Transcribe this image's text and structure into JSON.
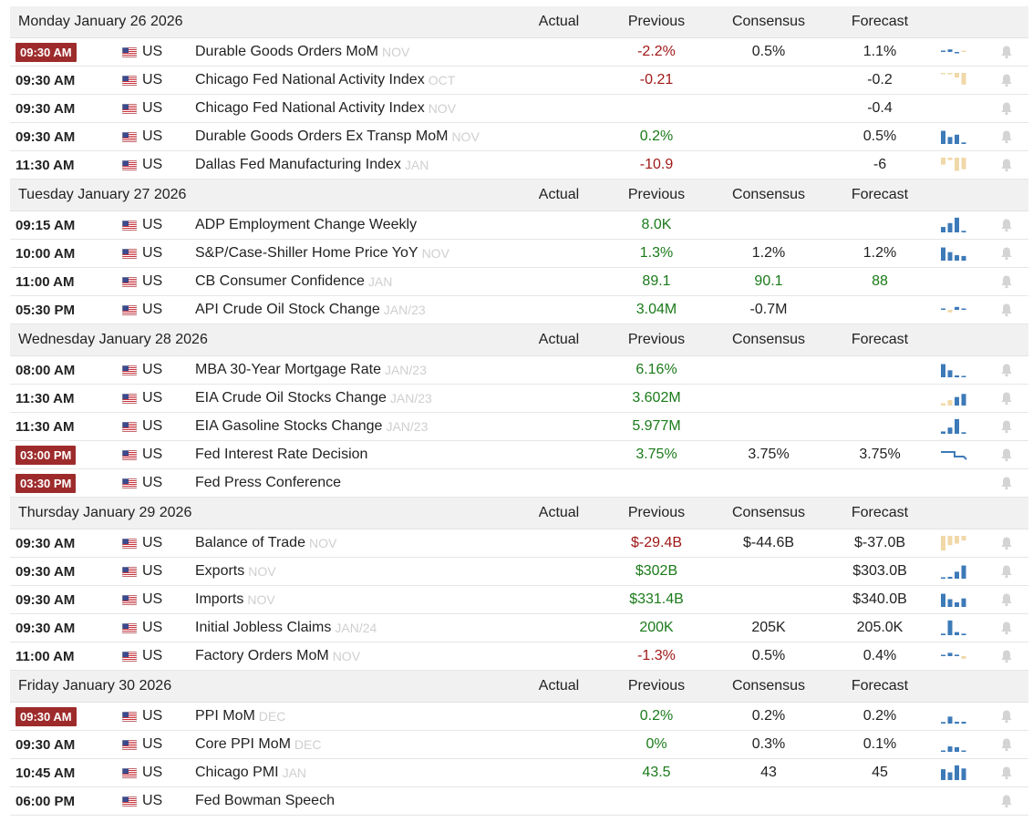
{
  "columns": {
    "actual": "Actual",
    "previous": "Previous",
    "consensus": "Consensus",
    "forecast": "Forecast"
  },
  "colors": {
    "badge": "#9e2b2b",
    "positive": "#1a7a1a",
    "negative": "#a01818",
    "spark_blue": "#3d7ab8",
    "spark_tan": "#f0d8a8"
  },
  "days": [
    {
      "date": "Monday January 26 2026",
      "rows": [
        {
          "time": "09:30 AM",
          "highlight": true,
          "country": "US",
          "event": "Durable Goods Orders MoM",
          "period": "NOV",
          "actual": "",
          "previous": "-2.2%",
          "prev_color": "neg",
          "consensus": "0.5%",
          "forecast": "1.1%",
          "spark": [
            {
              "v": 0.15,
              "c": "blue"
            },
            {
              "v": 0.35,
              "c": "blue"
            },
            {
              "v": -0.1,
              "c": "blue"
            },
            {
              "v": 0.12,
              "c": "tan"
            }
          ]
        },
        {
          "time": "09:30 AM",
          "highlight": false,
          "country": "US",
          "event": "Chicago Fed National Activity Index",
          "period": "OCT",
          "actual": "",
          "previous": "-0.21",
          "prev_color": "neg",
          "consensus": "",
          "forecast": "-0.2",
          "spark": [
            {
              "v": -0.05,
              "c": "tan"
            },
            {
              "v": -0.05,
              "c": "tan"
            },
            {
              "v": -0.3,
              "c": "tan"
            },
            {
              "v": -0.75,
              "c": "tan"
            }
          ]
        },
        {
          "time": "09:30 AM",
          "highlight": false,
          "country": "US",
          "event": "Chicago Fed National Activity Index",
          "period": "NOV",
          "actual": "",
          "previous": "",
          "prev_color": "neu",
          "consensus": "",
          "forecast": "-0.4",
          "spark": []
        },
        {
          "time": "09:30 AM",
          "highlight": false,
          "country": "US",
          "event": "Durable Goods Orders Ex Transp MoM",
          "period": "NOV",
          "actual": "",
          "previous": "0.2%",
          "prev_color": "pos",
          "consensus": "",
          "forecast": "0.5%",
          "spark": [
            {
              "v": 0.85,
              "c": "blue"
            },
            {
              "v": 0.45,
              "c": "blue"
            },
            {
              "v": 0.6,
              "c": "blue"
            },
            {
              "v": 0.1,
              "c": "blue"
            }
          ]
        },
        {
          "time": "11:30 AM",
          "highlight": false,
          "country": "US",
          "event": "Dallas Fed Manufacturing Index",
          "period": "JAN",
          "actual": "",
          "previous": "-10.9",
          "prev_color": "neg",
          "consensus": "",
          "forecast": "-6",
          "spark": [
            {
              "v": -0.45,
              "c": "tan"
            },
            {
              "v": -0.15,
              "c": "tan"
            },
            {
              "v": -0.85,
              "c": "tan"
            },
            {
              "v": -0.75,
              "c": "tan"
            }
          ]
        }
      ]
    },
    {
      "date": "Tuesday January 27 2026",
      "rows": [
        {
          "time": "09:15 AM",
          "highlight": false,
          "country": "US",
          "event": "ADP Employment Change Weekly",
          "period": "",
          "actual": "",
          "previous": "8.0K",
          "prev_color": "pos",
          "consensus": "",
          "forecast": "",
          "spark": [
            {
              "v": 0.35,
              "c": "blue"
            },
            {
              "v": 0.6,
              "c": "blue"
            },
            {
              "v": 0.95,
              "c": "blue"
            },
            {
              "v": 0.1,
              "c": "blue"
            }
          ]
        },
        {
          "time": "10:00 AM",
          "highlight": false,
          "country": "US",
          "event": "S&P/Case-Shiller Home Price YoY",
          "period": "NOV",
          "actual": "",
          "previous": "1.3%",
          "prev_color": "pos",
          "consensus": "1.2%",
          "forecast": "1.2%",
          "spark": [
            {
              "v": 0.85,
              "c": "blue"
            },
            {
              "v": 0.55,
              "c": "blue"
            },
            {
              "v": 0.35,
              "c": "blue"
            },
            {
              "v": 0.3,
              "c": "blue"
            }
          ]
        },
        {
          "time": "11:00 AM",
          "highlight": false,
          "country": "US",
          "event": "CB Consumer Confidence",
          "period": "JAN",
          "actual": "",
          "previous": "89.1",
          "prev_color": "pos",
          "consensus": "90.1",
          "cons_color": "pos",
          "forecast": "88",
          "fore_color": "pos",
          "spark": []
        },
        {
          "time": "05:30 PM",
          "highlight": false,
          "country": "US",
          "event": "API Crude Oil Stock Change",
          "period": "JAN/23",
          "actual": "",
          "previous": "3.04M",
          "prev_color": "pos",
          "consensus": "-0.7M",
          "forecast": "",
          "spark": [
            {
              "v": 0.12,
              "c": "blue"
            },
            {
              "v": -0.35,
              "c": "tan"
            },
            {
              "v": 0.4,
              "c": "blue"
            },
            {
              "v": 0.15,
              "c": "blue"
            }
          ]
        }
      ]
    },
    {
      "date": "Wednesday January 28 2026",
      "rows": [
        {
          "time": "08:00 AM",
          "highlight": false,
          "country": "US",
          "event": "MBA 30-Year Mortgage Rate",
          "period": "JAN/23",
          "actual": "",
          "previous": "6.16%",
          "prev_color": "pos",
          "consensus": "",
          "forecast": "",
          "spark": [
            {
              "v": 0.85,
              "c": "blue"
            },
            {
              "v": 0.45,
              "c": "blue"
            },
            {
              "v": 0.12,
              "c": "blue"
            },
            {
              "v": 0.06,
              "c": "blue"
            }
          ]
        },
        {
          "time": "11:30 AM",
          "highlight": false,
          "country": "US",
          "event": "EIA Crude Oil Stocks Change",
          "period": "JAN/23",
          "actual": "",
          "previous": "3.602M",
          "prev_color": "pos",
          "consensus": "",
          "forecast": "",
          "spark": [
            {
              "v": 0.15,
              "c": "tan"
            },
            {
              "v": 0.35,
              "c": "tan"
            },
            {
              "v": 0.55,
              "c": "blue"
            },
            {
              "v": 0.75,
              "c": "blue"
            }
          ]
        },
        {
          "time": "11:30 AM",
          "highlight": false,
          "country": "US",
          "event": "EIA Gasoline Stocks Change",
          "period": "JAN/23",
          "actual": "",
          "previous": "5.977M",
          "prev_color": "pos",
          "consensus": "",
          "forecast": "",
          "spark": [
            {
              "v": 0.15,
              "c": "blue"
            },
            {
              "v": 0.4,
              "c": "blue"
            },
            {
              "v": 0.95,
              "c": "blue"
            },
            {
              "v": 0.1,
              "c": "blue"
            }
          ]
        },
        {
          "time": "03:00 PM",
          "highlight": true,
          "country": "US",
          "event": "Fed Interest Rate Decision",
          "period": "",
          "actual": "",
          "previous": "3.75%",
          "prev_color": "pos",
          "consensus": "3.75%",
          "forecast": "3.75%",
          "spark": "step"
        },
        {
          "time": "03:30 PM",
          "highlight": true,
          "country": "US",
          "event": "Fed Press Conference",
          "period": "",
          "actual": "",
          "previous": "",
          "prev_color": "neu",
          "consensus": "",
          "forecast": "",
          "spark": []
        }
      ]
    },
    {
      "date": "Thursday January 29 2026",
      "rows": [
        {
          "time": "09:30 AM",
          "highlight": false,
          "country": "US",
          "event": "Balance of Trade",
          "period": "NOV",
          "actual": "",
          "previous": "$-29.4B",
          "prev_color": "neg",
          "consensus": "$-44.6B",
          "forecast": "$-37.0B",
          "spark": [
            {
              "v": -0.95,
              "c": "tan"
            },
            {
              "v": -0.6,
              "c": "tan"
            },
            {
              "v": -0.5,
              "c": "tan"
            },
            {
              "v": -0.3,
              "c": "tan"
            }
          ]
        },
        {
          "time": "09:30 AM",
          "highlight": false,
          "country": "US",
          "event": "Exports",
          "period": "NOV",
          "actual": "",
          "previous": "$302B",
          "prev_color": "pos",
          "consensus": "",
          "forecast": "$303.0B",
          "spark": [
            {
              "v": 0.06,
              "c": "blue"
            },
            {
              "v": 0.12,
              "c": "blue"
            },
            {
              "v": 0.45,
              "c": "blue"
            },
            {
              "v": 0.85,
              "c": "blue"
            }
          ]
        },
        {
          "time": "09:30 AM",
          "highlight": false,
          "country": "US",
          "event": "Imports",
          "period": "NOV",
          "actual": "",
          "previous": "$331.4B",
          "prev_color": "pos",
          "consensus": "",
          "forecast": "$340.0B",
          "spark": [
            {
              "v": 0.85,
              "c": "blue"
            },
            {
              "v": 0.5,
              "c": "blue"
            },
            {
              "v": 0.3,
              "c": "blue"
            },
            {
              "v": 0.55,
              "c": "blue"
            }
          ]
        },
        {
          "time": "09:30 AM",
          "highlight": false,
          "country": "US",
          "event": "Initial Jobless Claims",
          "period": "JAN/24",
          "actual": "",
          "previous": "200K",
          "prev_color": "pos",
          "consensus": "205K",
          "forecast": "205.0K",
          "spark": [
            {
              "v": 0.1,
              "c": "blue"
            },
            {
              "v": 0.95,
              "c": "blue"
            },
            {
              "v": 0.2,
              "c": "blue"
            },
            {
              "v": 0.1,
              "c": "blue"
            }
          ]
        },
        {
          "time": "11:00 AM",
          "highlight": false,
          "country": "US",
          "event": "Factory Orders MoM",
          "period": "NOV",
          "actual": "",
          "previous": "-1.3%",
          "prev_color": "neg",
          "consensus": "0.5%",
          "forecast": "0.4%",
          "spark": [
            {
              "v": 0.15,
              "c": "blue"
            },
            {
              "v": 0.45,
              "c": "blue"
            },
            {
              "v": 0.2,
              "c": "blue"
            },
            {
              "v": -0.35,
              "c": "tan"
            }
          ]
        }
      ]
    },
    {
      "date": "Friday January 30 2026",
      "rows": [
        {
          "time": "09:30 AM",
          "highlight": true,
          "country": "US",
          "event": "PPI MoM",
          "period": "DEC",
          "actual": "",
          "previous": "0.2%",
          "prev_color": "pos",
          "consensus": "0.2%",
          "forecast": "0.2%",
          "spark": [
            {
              "v": 0.1,
              "c": "blue"
            },
            {
              "v": 0.45,
              "c": "blue"
            },
            {
              "v": 0.12,
              "c": "blue"
            },
            {
              "v": 0.12,
              "c": "blue"
            }
          ]
        },
        {
          "time": "09:30 AM",
          "highlight": false,
          "country": "US",
          "event": "Core PPI MoM",
          "period": "DEC",
          "actual": "",
          "previous": "0%",
          "prev_color": "pos",
          "consensus": "0.3%",
          "forecast": "0.1%",
          "spark": [
            {
              "v": 0.08,
              "c": "blue"
            },
            {
              "v": 0.35,
              "c": "blue"
            },
            {
              "v": 0.3,
              "c": "blue"
            },
            {
              "v": 0.05,
              "c": "blue"
            }
          ]
        },
        {
          "time": "10:45 AM",
          "highlight": false,
          "country": "US",
          "event": "Chicago PMI",
          "period": "JAN",
          "actual": "",
          "previous": "43.5",
          "prev_color": "pos",
          "consensus": "43",
          "forecast": "45",
          "spark": [
            {
              "v": 0.7,
              "c": "blue"
            },
            {
              "v": 0.5,
              "c": "blue"
            },
            {
              "v": 0.95,
              "c": "blue"
            },
            {
              "v": 0.75,
              "c": "blue"
            }
          ]
        },
        {
          "time": "06:00 PM",
          "highlight": false,
          "country": "US",
          "event": "Fed Bowman Speech",
          "period": "",
          "actual": "",
          "previous": "",
          "prev_color": "neu",
          "consensus": "",
          "forecast": "",
          "spark": []
        }
      ]
    }
  ]
}
